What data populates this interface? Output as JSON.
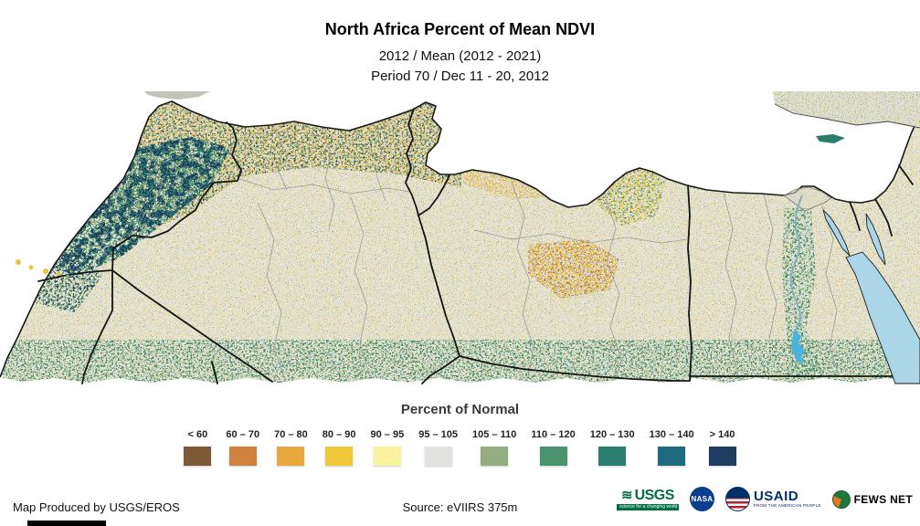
{
  "header": {
    "title": "North Africa Percent of Mean NDVI",
    "subtitle_period": "2012 / Mean (2012 - 2021)",
    "subtitle_dates": "Period 70 / Dec 11 - 20, 2012"
  },
  "legend": {
    "title": "Percent of Normal",
    "classes": [
      {
        "label": "< 60",
        "color": "#7d5a33"
      },
      {
        "label": "60 – 70",
        "color": "#d0803f"
      },
      {
        "label": "70 – 80",
        "color": "#e9a83f"
      },
      {
        "label": "80 – 90",
        "color": "#efc839"
      },
      {
        "label": "90 – 95",
        "color": "#f9f3a0"
      },
      {
        "label": "95 – 105",
        "color": "#e2e2de"
      },
      {
        "label": "105 – 110",
        "color": "#94ad80"
      },
      {
        "label": "110 – 120",
        "color": "#4b926f"
      },
      {
        "label": "120 – 130",
        "color": "#2b7d6d"
      },
      {
        "label": "130 – 140",
        "color": "#1f6a80"
      },
      {
        "label": "> 140",
        "color": "#1f3d61"
      }
    ]
  },
  "footer": {
    "produced_by": "Map Produced by USGS/EROS",
    "source": "Source: eVIIRS 375m",
    "logos": {
      "usgs": {
        "name": "USGS",
        "tagline": "science for a changing world"
      },
      "nasa": {
        "name": "NASA"
      },
      "usaid": {
        "name": "USAID",
        "tagline": "FROM THE AMERICAN PEOPLE"
      },
      "fewsnet": {
        "name": "FEWS NET"
      }
    }
  }
}
